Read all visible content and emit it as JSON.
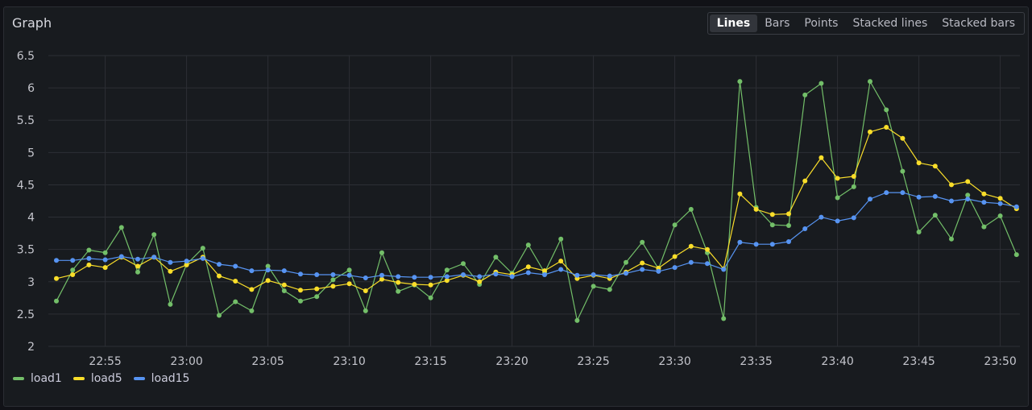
{
  "panel": {
    "title": "Graph",
    "modes": [
      "Lines",
      "Bars",
      "Points",
      "Stacked lines",
      "Stacked bars"
    ],
    "active_mode": "Lines"
  },
  "chart_data": {
    "type": "line",
    "x": [
      "22:52",
      "22:53",
      "22:54",
      "22:55",
      "22:56",
      "22:57",
      "22:58",
      "22:59",
      "23:00",
      "23:01",
      "23:02",
      "23:03",
      "23:04",
      "23:05",
      "23:06",
      "23:07",
      "23:08",
      "23:09",
      "23:10",
      "23:11",
      "23:12",
      "23:13",
      "23:14",
      "23:15",
      "23:16",
      "23:17",
      "23:18",
      "23:19",
      "23:20",
      "23:21",
      "23:22",
      "23:23",
      "23:24",
      "23:25",
      "23:26",
      "23:27",
      "23:28",
      "23:29",
      "23:30",
      "23:31",
      "23:32",
      "23:33",
      "23:34",
      "23:35",
      "23:36",
      "23:37",
      "23:38",
      "23:39",
      "23:40",
      "23:41",
      "23:42",
      "23:43",
      "23:44",
      "23:45",
      "23:46",
      "23:47",
      "23:48",
      "23:49",
      "23:50",
      "23:51"
    ],
    "x_ticks": [
      "22:55",
      "23:00",
      "23:05",
      "23:10",
      "23:15",
      "23:20",
      "23:25",
      "23:30",
      "23:35",
      "23:40",
      "23:45",
      "23:50"
    ],
    "y_ticks": [
      2,
      2.5,
      3,
      3.5,
      4,
      4.5,
      5,
      5.5,
      6,
      6.5
    ],
    "ylim": [
      2,
      6.5
    ],
    "grid": true,
    "legend_position": "bottom-left",
    "series": [
      {
        "name": "load1",
        "color": "#73bf69",
        "values": [
          2.7,
          3.18,
          3.49,
          3.45,
          3.84,
          3.15,
          3.73,
          2.65,
          3.27,
          3.52,
          2.48,
          2.69,
          2.55,
          3.24,
          2.86,
          2.7,
          2.77,
          3.03,
          3.18,
          2.55,
          3.45,
          2.85,
          2.95,
          2.75,
          3.18,
          3.28,
          2.96,
          3.38,
          3.13,
          3.57,
          3.14,
          3.66,
          2.4,
          2.93,
          2.88,
          3.3,
          3.61,
          3.2,
          3.88,
          4.12,
          3.45,
          2.43,
          6.1,
          4.15,
          3.88,
          3.87,
          5.89,
          6.07,
          4.3,
          4.47,
          6.1,
          5.66,
          4.71,
          3.77,
          4.03,
          3.66,
          4.34,
          3.85,
          4.02,
          3.42
        ]
      },
      {
        "name": "load5",
        "color": "#fade2a",
        "values": [
          3.05,
          3.11,
          3.26,
          3.22,
          3.38,
          3.24,
          3.38,
          3.16,
          3.26,
          3.38,
          3.09,
          3.01,
          2.88,
          3.02,
          2.95,
          2.87,
          2.89,
          2.93,
          2.97,
          2.86,
          3.04,
          2.99,
          2.96,
          2.95,
          3.02,
          3.1,
          3.0,
          3.15,
          3.11,
          3.23,
          3.17,
          3.32,
          3.05,
          3.1,
          3.05,
          3.15,
          3.29,
          3.21,
          3.39,
          3.55,
          3.5,
          3.2,
          4.36,
          4.12,
          4.04,
          4.05,
          4.56,
          4.92,
          4.6,
          4.63,
          5.32,
          5.39,
          5.22,
          4.84,
          4.79,
          4.5,
          4.55,
          4.36,
          4.29,
          4.13
        ]
      },
      {
        "name": "load15",
        "color": "#5794f2",
        "values": [
          3.33,
          3.33,
          3.36,
          3.34,
          3.39,
          3.35,
          3.38,
          3.3,
          3.32,
          3.36,
          3.27,
          3.24,
          3.17,
          3.18,
          3.17,
          3.12,
          3.11,
          3.11,
          3.1,
          3.06,
          3.1,
          3.08,
          3.07,
          3.07,
          3.08,
          3.11,
          3.08,
          3.12,
          3.08,
          3.14,
          3.11,
          3.19,
          3.1,
          3.11,
          3.09,
          3.13,
          3.19,
          3.16,
          3.22,
          3.3,
          3.28,
          3.19,
          3.61,
          3.58,
          3.58,
          3.62,
          3.82,
          4.0,
          3.94,
          3.99,
          4.28,
          4.38,
          4.38,
          4.31,
          4.32,
          4.25,
          4.28,
          4.23,
          4.21,
          4.16
        ]
      }
    ]
  }
}
